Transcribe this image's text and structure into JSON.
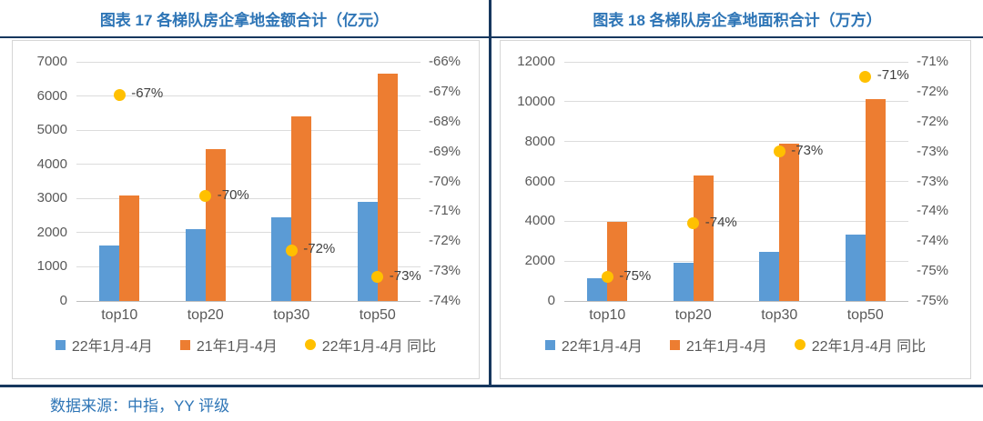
{
  "colors": {
    "title_blue": "#2e75b6",
    "rule_navy": "#17375e",
    "blue": "#5b9bd5",
    "orange": "#ed7d31",
    "yellow": "#ffc000",
    "axis_text": "#595959",
    "label_text": "#404040",
    "grid": "#dcdcdc",
    "axis_line": "#bfbfbf",
    "panel_border": "#d6d6d6"
  },
  "footer": {
    "source_note": "数据来源：中指，YY 评级"
  },
  "chart_data": [
    {
      "type": "bar+scatter",
      "title": "图表 17 各梯队房企拿地金额合计（亿元）",
      "categories": [
        "top10",
        "top20",
        "top30",
        "top50"
      ],
      "primary_axis": {
        "min": 0,
        "max": 7000,
        "step": 1000,
        "tick_values": [
          7000,
          6000,
          5000,
          4000,
          3000,
          2000,
          1000,
          0
        ],
        "tick_labels": [
          "7000",
          "6000",
          "5000",
          "4000",
          "3000",
          "2000",
          "1000",
          "0"
        ]
      },
      "secondary_axis": {
        "min": -74,
        "max": -66,
        "tick_labels": [
          "-66%",
          "-67%",
          "-68%",
          "-69%",
          "-70%",
          "-71%",
          "-72%",
          "-73%",
          "-74%"
        ]
      },
      "series": [
        {
          "name": "22年1月-4月",
          "type": "bar",
          "color_key": "blue",
          "values": [
            1620,
            2100,
            2450,
            2900
          ]
        },
        {
          "name": "21年1月-4月",
          "type": "bar",
          "color_key": "orange",
          "values": [
            3100,
            4450,
            5400,
            6650
          ]
        },
        {
          "name": "22年1月-4月 同比",
          "type": "scatter",
          "color_key": "yellow",
          "axis": "secondary",
          "values": [
            -67.1,
            -70.5,
            -72.3,
            -73.2
          ],
          "labels": [
            "-67%",
            "-70%",
            "-72%",
            "-73%"
          ]
        }
      ],
      "legend_position": "bottom",
      "grid": true
    },
    {
      "type": "bar+scatter",
      "title": "图表 18 各梯队房企拿地面积合计（万方）",
      "categories": [
        "top10",
        "top20",
        "top30",
        "top50"
      ],
      "primary_axis": {
        "min": 0,
        "max": 12000,
        "step": 2000,
        "tick_values": [
          12000,
          10000,
          8000,
          6000,
          4000,
          2000,
          0
        ],
        "tick_labels": [
          "12000",
          "10000",
          "8000",
          "6000",
          "4000",
          "2000",
          "0"
        ]
      },
      "secondary_axis": {
        "min": -75,
        "max": -71,
        "tick_labels": [
          "-71%",
          "-72%",
          "-72%",
          "-73%",
          "-73%",
          "-74%",
          "-74%",
          "-75%",
          "-75%"
        ]
      },
      "series": [
        {
          "name": "22年1月-4月",
          "type": "bar",
          "color_key": "blue",
          "values": [
            1150,
            1900,
            2450,
            3350
          ]
        },
        {
          "name": "21年1月-4月",
          "type": "bar",
          "color_key": "orange",
          "values": [
            3950,
            6300,
            7900,
            10150
          ]
        },
        {
          "name": "22年1月-4月 同比",
          "type": "scatter",
          "color_key": "yellow",
          "axis": "secondary",
          "values": [
            -74.6,
            -73.7,
            -72.5,
            -71.25
          ],
          "labels": [
            "-75%",
            "-74%",
            "-73%",
            "-71%"
          ]
        }
      ],
      "legend_position": "bottom",
      "grid": true
    }
  ]
}
